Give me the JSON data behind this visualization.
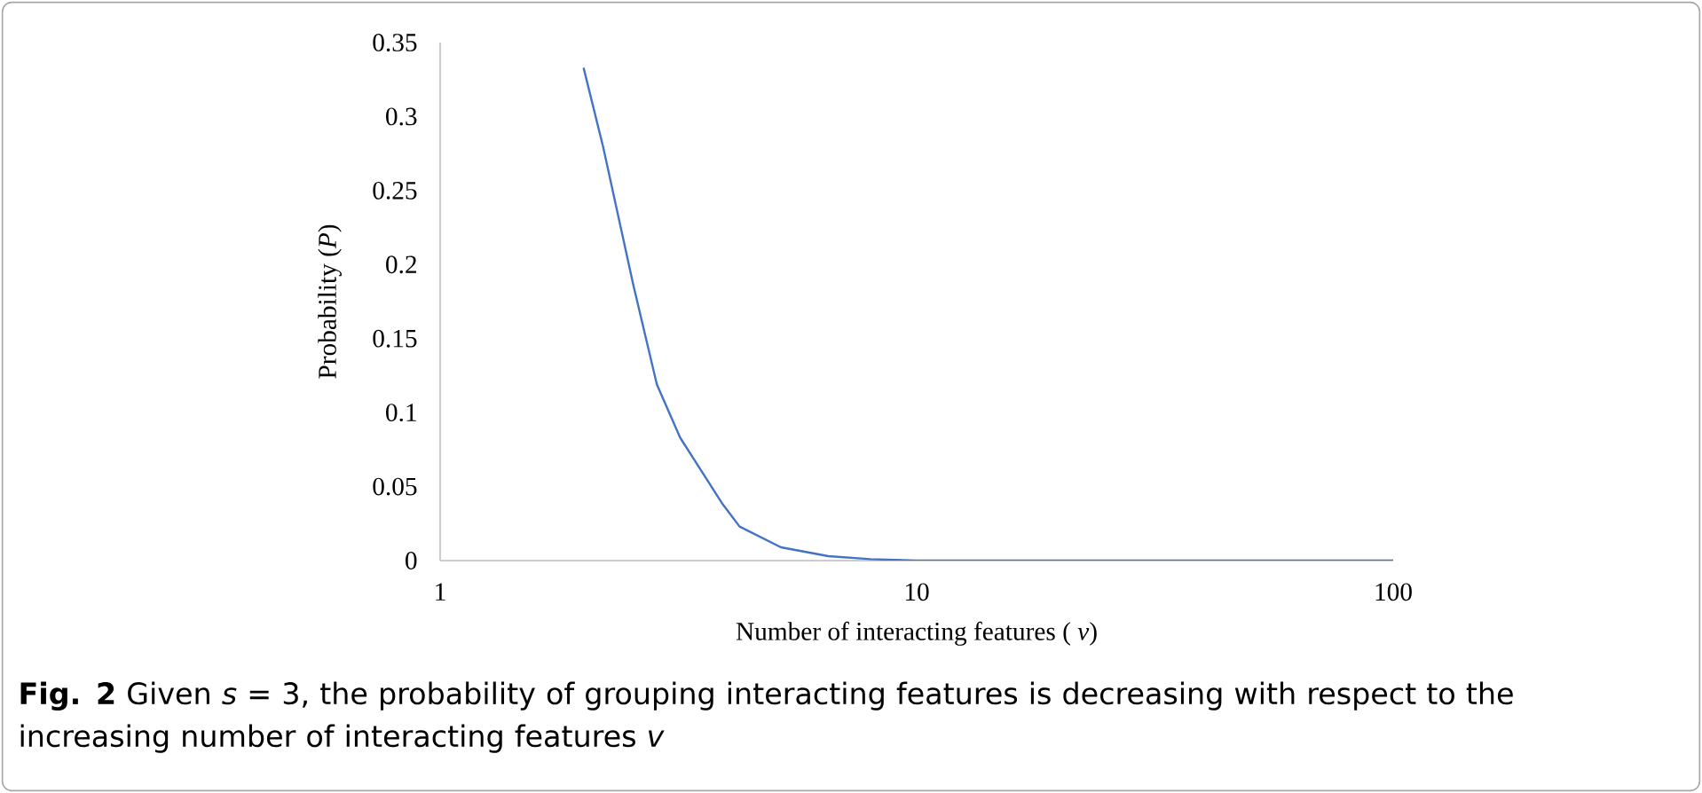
{
  "chart_data": {
    "type": "line",
    "xlabel": "Number of interacting features ( *v*)",
    "ylabel": "Probability (*P*)",
    "x": [
      2,
      2.2,
      2.54,
      2.85,
      3.19,
      3.9,
      4.25,
      5.19,
      6.53,
      8,
      10,
      20,
      50,
      100
    ],
    "series": [
      {
        "color": "#4472c4",
        "values": [
          0.333,
          0.279,
          0.187,
          0.119,
          0.083,
          0.039,
          0.023,
          0.009,
          0.003,
          0.001,
          0,
          0,
          0,
          0
        ]
      }
    ],
    "log": "x",
    "xlim": [
      1,
      100
    ],
    "xticks": [
      1,
      10,
      100
    ],
    "ylim": [
      0,
      0.35
    ],
    "yticks": [
      0,
      0.05,
      0.1,
      0.15,
      0.2,
      0.25,
      0.3,
      0.35
    ],
    "grid": false,
    "marker": "none",
    "line_style": "solid",
    "annotations": [
      "**Fig. 2** Given *s* = 3, the probability of grouping interacting features is decreasing with respect to the increasing number of interacting features *v*"
    ]
  }
}
